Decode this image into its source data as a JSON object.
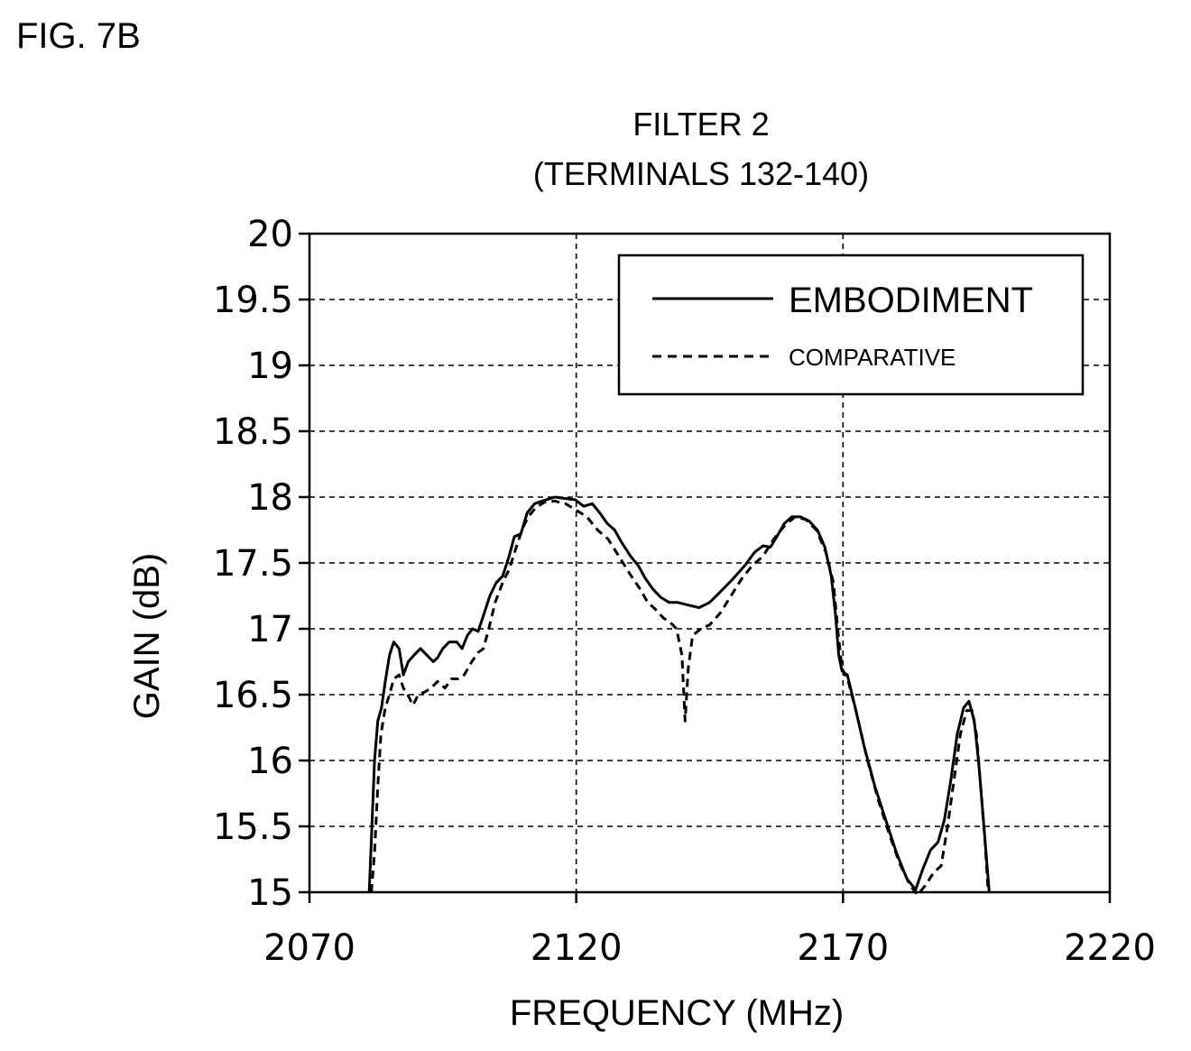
{
  "figure_label": "FIG. 7B",
  "chart_data": {
    "type": "line",
    "title": "FILTER 2",
    "subtitle": "(TERMINALS 132-140)",
    "xlabel": "FREQUENCY  (MHz)",
    "ylabel": "GAIN  (dB)",
    "xlim": [
      2070,
      2220
    ],
    "ylim": [
      15,
      20
    ],
    "x_ticks": [
      2070,
      2120,
      2170,
      2220
    ],
    "x_tick_labels": [
      "2070",
      "2120",
      "2170",
      "2220"
    ],
    "y_ticks": [
      15,
      15.5,
      16,
      16.5,
      17,
      17.5,
      18,
      18.5,
      19,
      19.5,
      20
    ],
    "y_tick_labels": [
      "15",
      "15.5",
      "16",
      "16.5",
      "17",
      "17.5",
      "18",
      "18.5",
      "19",
      "19.5",
      "20"
    ],
    "grid": true,
    "legend_position": "top-right",
    "series": [
      {
        "name": "EMBODIMENT",
        "style": "solid",
        "color": "#000000",
        "points": [
          [
            2081.2,
            15.0
          ],
          [
            2081.6,
            15.4
          ],
          [
            2082.2,
            16.0
          ],
          [
            2082.8,
            16.3
          ],
          [
            2083.5,
            16.4
          ],
          [
            2084.2,
            16.6
          ],
          [
            2085.0,
            16.8
          ],
          [
            2085.8,
            16.9
          ],
          [
            2086.8,
            16.85
          ],
          [
            2087.6,
            16.65
          ],
          [
            2088.5,
            16.75
          ],
          [
            2089.6,
            16.8
          ],
          [
            2090.8,
            16.85
          ],
          [
            2092.0,
            16.8
          ],
          [
            2093.2,
            16.75
          ],
          [
            2094.0,
            16.78
          ],
          [
            2095.0,
            16.85
          ],
          [
            2096.2,
            16.9
          ],
          [
            2097.6,
            16.9
          ],
          [
            2098.6,
            16.85
          ],
          [
            2099.6,
            16.95
          ],
          [
            2100.6,
            17.0
          ],
          [
            2101.6,
            16.98
          ],
          [
            2102.6,
            17.1
          ],
          [
            2103.8,
            17.25
          ],
          [
            2105.0,
            17.35
          ],
          [
            2106.2,
            17.4
          ],
          [
            2107.4,
            17.55
          ],
          [
            2108.4,
            17.7
          ],
          [
            2109.6,
            17.72
          ],
          [
            2110.8,
            17.88
          ],
          [
            2112.2,
            17.95
          ],
          [
            2113.6,
            17.97
          ],
          [
            2114.4,
            17.98
          ],
          [
            2116.0,
            18.0
          ],
          [
            2117.8,
            17.99
          ],
          [
            2119.8,
            17.98
          ],
          [
            2121.4,
            17.93
          ],
          [
            2123.0,
            17.95
          ],
          [
            2124.4,
            17.88
          ],
          [
            2125.8,
            17.8
          ],
          [
            2127.2,
            17.75
          ],
          [
            2128.6,
            17.65
          ],
          [
            2130.2,
            17.55
          ],
          [
            2131.6,
            17.48
          ],
          [
            2133.0,
            17.38
          ],
          [
            2134.4,
            17.3
          ],
          [
            2135.8,
            17.24
          ],
          [
            2137.4,
            17.2
          ],
          [
            2139.0,
            17.2
          ],
          [
            2141.0,
            17.18
          ],
          [
            2143.0,
            17.16
          ],
          [
            2145.0,
            17.2
          ],
          [
            2147.0,
            17.28
          ],
          [
            2149.4,
            17.38
          ],
          [
            2151.6,
            17.48
          ],
          [
            2153.4,
            17.58
          ],
          [
            2155.0,
            17.63
          ],
          [
            2156.4,
            17.62
          ],
          [
            2157.6,
            17.7
          ],
          [
            2159.0,
            17.8
          ],
          [
            2160.4,
            17.85
          ],
          [
            2162.0,
            17.85
          ],
          [
            2163.6,
            17.82
          ],
          [
            2165.2,
            17.75
          ],
          [
            2166.6,
            17.62
          ],
          [
            2167.8,
            17.4
          ],
          [
            2168.6,
            17.1
          ],
          [
            2169.2,
            16.8
          ],
          [
            2169.8,
            16.68
          ],
          [
            2170.8,
            16.65
          ],
          [
            2172.0,
            16.45
          ],
          [
            2174.0,
            16.1
          ],
          [
            2176.0,
            15.8
          ],
          [
            2178.0,
            15.55
          ],
          [
            2180.0,
            15.3
          ],
          [
            2182.0,
            15.1
          ],
          [
            2183.6,
            15.02
          ],
          [
            2185.0,
            15.18
          ],
          [
            2186.4,
            15.32
          ],
          [
            2187.8,
            15.38
          ],
          [
            2189.0,
            15.55
          ],
          [
            2190.2,
            15.85
          ],
          [
            2191.4,
            16.2
          ],
          [
            2192.6,
            16.4
          ],
          [
            2193.6,
            16.45
          ],
          [
            2194.6,
            16.3
          ],
          [
            2195.4,
            16.0
          ],
          [
            2196.2,
            15.6
          ],
          [
            2197.0,
            15.2
          ],
          [
            2197.4,
            15.0
          ]
        ]
      },
      {
        "name": "COMPARATIVE",
        "style": "dashed",
        "color": "#000000",
        "points": [
          [
            2081.6,
            15.0
          ],
          [
            2082.2,
            15.3
          ],
          [
            2082.8,
            15.8
          ],
          [
            2083.4,
            16.2
          ],
          [
            2084.2,
            16.4
          ],
          [
            2085.0,
            16.5
          ],
          [
            2085.8,
            16.62
          ],
          [
            2086.8,
            16.65
          ],
          [
            2087.6,
            16.55
          ],
          [
            2088.4,
            16.5
          ],
          [
            2089.4,
            16.42
          ],
          [
            2090.4,
            16.5
          ],
          [
            2091.6,
            16.52
          ],
          [
            2092.8,
            16.55
          ],
          [
            2094.0,
            16.6
          ],
          [
            2095.4,
            16.55
          ],
          [
            2096.6,
            16.62
          ],
          [
            2097.8,
            16.62
          ],
          [
            2099.0,
            16.65
          ],
          [
            2100.4,
            16.75
          ],
          [
            2101.6,
            16.82
          ],
          [
            2102.6,
            16.85
          ],
          [
            2103.6,
            17.0
          ],
          [
            2104.8,
            17.2
          ],
          [
            2106.2,
            17.35
          ],
          [
            2107.4,
            17.45
          ],
          [
            2108.6,
            17.6
          ],
          [
            2109.8,
            17.75
          ],
          [
            2111.0,
            17.85
          ],
          [
            2112.4,
            17.92
          ],
          [
            2114.0,
            17.96
          ],
          [
            2116.0,
            17.97
          ],
          [
            2118.0,
            17.95
          ],
          [
            2120.0,
            17.9
          ],
          [
            2122.0,
            17.85
          ],
          [
            2124.0,
            17.75
          ],
          [
            2126.0,
            17.68
          ],
          [
            2128.0,
            17.55
          ],
          [
            2130.0,
            17.42
          ],
          [
            2132.0,
            17.3
          ],
          [
            2133.4,
            17.2
          ],
          [
            2134.8,
            17.15
          ],
          [
            2136.4,
            17.08
          ],
          [
            2137.6,
            17.05
          ],
          [
            2138.8,
            17.0
          ],
          [
            2139.8,
            16.8
          ],
          [
            2140.4,
            16.3
          ],
          [
            2141.0,
            16.7
          ],
          [
            2141.8,
            16.95
          ],
          [
            2143.4,
            17.0
          ],
          [
            2145.0,
            17.03
          ],
          [
            2147.0,
            17.12
          ],
          [
            2149.0,
            17.25
          ],
          [
            2151.0,
            17.38
          ],
          [
            2153.0,
            17.48
          ],
          [
            2155.0,
            17.55
          ],
          [
            2157.0,
            17.68
          ],
          [
            2159.0,
            17.78
          ],
          [
            2161.0,
            17.85
          ],
          [
            2163.0,
            17.83
          ],
          [
            2165.0,
            17.75
          ],
          [
            2166.8,
            17.58
          ],
          [
            2168.2,
            17.35
          ],
          [
            2169.0,
            17.0
          ],
          [
            2169.8,
            16.7
          ],
          [
            2171.0,
            16.6
          ],
          [
            2172.6,
            16.35
          ],
          [
            2174.6,
            16.0
          ],
          [
            2176.6,
            15.7
          ],
          [
            2178.6,
            15.45
          ],
          [
            2180.6,
            15.22
          ],
          [
            2182.6,
            15.05
          ],
          [
            2184.0,
            14.98
          ],
          [
            2185.4,
            15.05
          ],
          [
            2187.0,
            15.15
          ],
          [
            2188.4,
            15.2
          ],
          [
            2189.6,
            15.5
          ],
          [
            2190.8,
            15.85
          ],
          [
            2192.0,
            16.2
          ],
          [
            2193.2,
            16.38
          ],
          [
            2194.2,
            16.38
          ],
          [
            2195.0,
            16.2
          ],
          [
            2195.8,
            15.8
          ],
          [
            2196.6,
            15.4
          ],
          [
            2197.2,
            15.0
          ]
        ]
      }
    ]
  }
}
